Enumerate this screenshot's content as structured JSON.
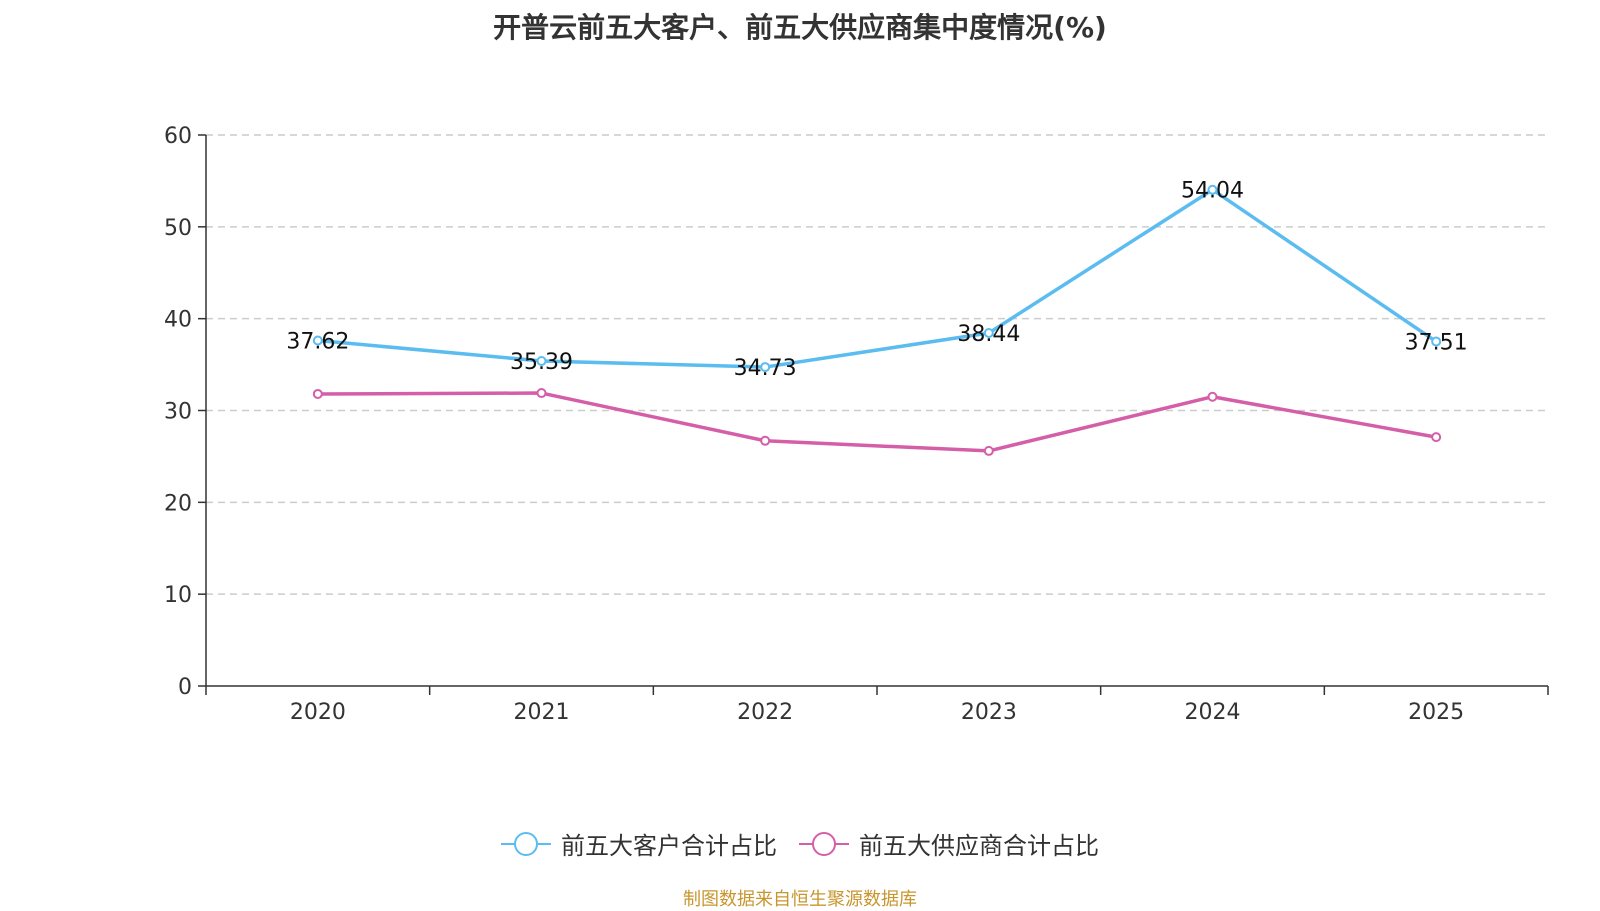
{
  "title": "开普云前五大客户、前五大供应商集中度情况(%)",
  "source": "制图数据来自恒生聚源数据库",
  "chart_data": {
    "type": "line",
    "title": "开普云前五大客户、前五大供应商集中度情况(%)",
    "categories": [
      "2020",
      "2021",
      "2022",
      "2023",
      "2024",
      "2025"
    ],
    "ylim": [
      0,
      60
    ],
    "yticks": [
      0,
      10,
      20,
      30,
      40,
      50,
      60
    ],
    "grid": "horizontal-dashed",
    "legend_position": "bottom",
    "series": [
      {
        "name": "前五大客户合计占比",
        "color": "#5bbcf0",
        "values": [
          37.62,
          35.39,
          34.73,
          38.44,
          54.04,
          37.51
        ],
        "show_labels": true
      },
      {
        "name": "前五大供应商合计占比",
        "color": "#d45fa8",
        "values": [
          31.8,
          31.9,
          26.7,
          25.6,
          31.5,
          27.1
        ],
        "show_labels": false
      }
    ]
  }
}
